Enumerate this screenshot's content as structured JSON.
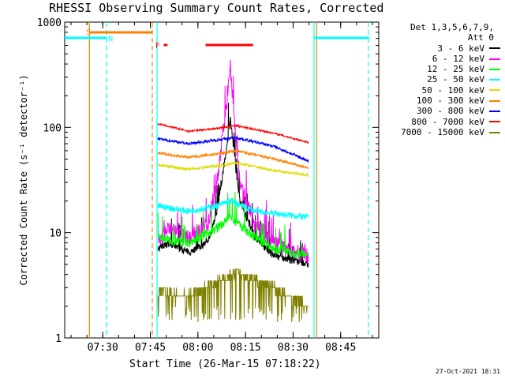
{
  "title": "RHESSI Observing Summary Count Rates, Corrected",
  "legend_header_1": "Det 1,3,5,6,7,9,",
  "legend_header_2": "Att 0",
  "x_axis_label": "Start Time (26-Mar-15 07:18:22)",
  "datestamp": "27-Oct-2021 18:31",
  "flag_labels": {
    "saa": "S",
    "night": "N",
    "flare": "F"
  },
  "chart_data": {
    "type": "line",
    "title": "RHESSI Observing Summary Count Rates, Corrected",
    "xlabel": "Start Time (26-Mar-15 07:18:22)",
    "ylabel": "Corrected Count Rate (s⁻¹ detector⁻¹)",
    "y_scale": "log",
    "ylim": [
      1,
      1000
    ],
    "xlim_minutes": [
      7.3,
      8.95
    ],
    "x_ticks": [
      "07:30",
      "07:45",
      "08:00",
      "08:15",
      "08:30",
      "08:45"
    ],
    "y_ticks": [
      "1",
      "10",
      "100",
      "1000"
    ],
    "legend_position": "right-outside",
    "series": [
      {
        "name": "3 - 6 keV",
        "color": "#000000",
        "values_desc": [
          [
            7.79,
            7
          ],
          [
            7.85,
            8
          ],
          [
            7.95,
            6.5
          ],
          [
            8.05,
            8
          ],
          [
            8.1,
            15
          ],
          [
            8.17,
            110
          ],
          [
            8.22,
            20
          ],
          [
            8.3,
            9
          ],
          [
            8.4,
            6
          ],
          [
            8.58,
            5
          ]
        ]
      },
      {
        "name": "6 - 12 keV",
        "color": "#ff00ff",
        "values_desc": [
          [
            7.79,
            9
          ],
          [
            7.85,
            11
          ],
          [
            7.95,
            9
          ],
          [
            8.05,
            12
          ],
          [
            8.1,
            30
          ],
          [
            8.17,
            330
          ],
          [
            8.22,
            30
          ],
          [
            8.3,
            12
          ],
          [
            8.4,
            8
          ],
          [
            8.58,
            6
          ]
        ]
      },
      {
        "name": "12 - 25 keV",
        "color": "#00ff00",
        "values_desc": [
          [
            7.79,
            9
          ],
          [
            7.95,
            8
          ],
          [
            8.1,
            11
          ],
          [
            8.17,
            14
          ],
          [
            8.3,
            9
          ],
          [
            8.4,
            7
          ],
          [
            8.58,
            6
          ]
        ]
      },
      {
        "name": "25 - 50 keV",
        "color": "#00ffff",
        "values_desc": [
          [
            7.79,
            18
          ],
          [
            7.95,
            16
          ],
          [
            8.1,
            18
          ],
          [
            8.17,
            20
          ],
          [
            8.3,
            16
          ],
          [
            8.58,
            14
          ]
        ]
      },
      {
        "name": "50 - 100 keV",
        "color": "#dddd00",
        "values_desc": [
          [
            7.79,
            44
          ],
          [
            7.95,
            40
          ],
          [
            8.1,
            43
          ],
          [
            8.2,
            46
          ],
          [
            8.4,
            39
          ],
          [
            8.58,
            35
          ]
        ]
      },
      {
        "name": "100 - 300 keV",
        "color": "#ff8000",
        "values_desc": [
          [
            7.79,
            57
          ],
          [
            7.95,
            52
          ],
          [
            8.1,
            56
          ],
          [
            8.2,
            60
          ],
          [
            8.4,
            50
          ],
          [
            8.58,
            41
          ]
        ]
      },
      {
        "name": "300 - 800 keV",
        "color": "#0000ff",
        "values_desc": [
          [
            7.79,
            78
          ],
          [
            7.95,
            70
          ],
          [
            8.1,
            76
          ],
          [
            8.2,
            80
          ],
          [
            8.4,
            66
          ],
          [
            8.58,
            48
          ]
        ]
      },
      {
        "name": "800 - 7000 keV",
        "color": "#ff0000",
        "values_desc": [
          [
            7.79,
            108
          ],
          [
            7.95,
            92
          ],
          [
            8.1,
            98
          ],
          [
            8.2,
            104
          ],
          [
            8.4,
            88
          ],
          [
            8.58,
            72
          ]
        ]
      },
      {
        "name": "7000 - 15000 keV",
        "color": "#808000",
        "values_desc": [
          [
            7.79,
            2.8
          ],
          [
            7.95,
            2.5
          ],
          [
            8.1,
            3.5
          ],
          [
            8.2,
            4.2
          ],
          [
            8.4,
            3
          ],
          [
            8.58,
            2
          ]
        ]
      }
    ]
  }
}
